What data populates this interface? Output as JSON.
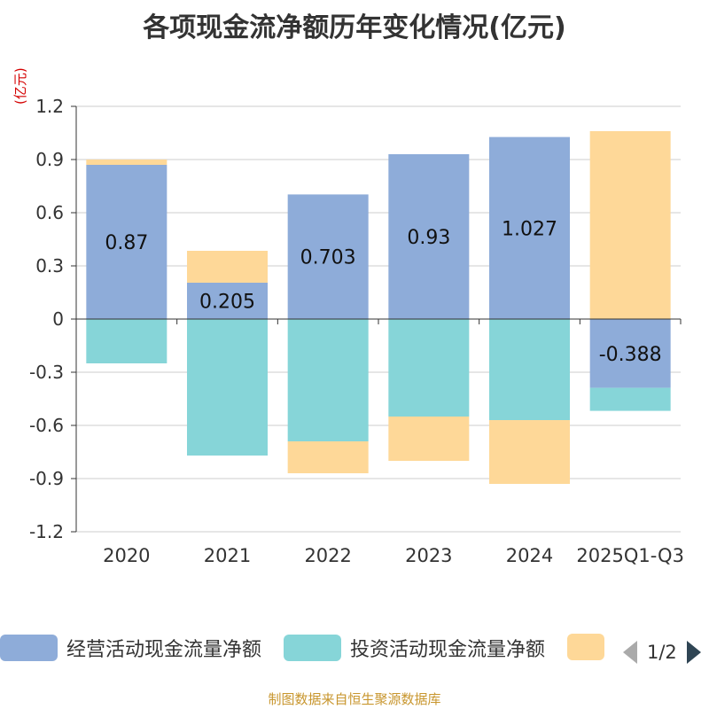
{
  "title": "各项现金流净额历年变化情况(亿元)",
  "unit_label": "(亿元)",
  "footer": "制图数据来自恒生聚源数据库",
  "colors": {
    "operating": "#8eacd9",
    "investing": "#86d5d8",
    "financing": "#fed898",
    "grid": "#cccccc",
    "axis": "#333333",
    "text": "#333333",
    "unit": "#d40000",
    "footer": "#c8962e"
  },
  "legend": {
    "items": [
      {
        "label": "经营活动现金流量净额",
        "color": "#8eacd9"
      },
      {
        "label": "投资活动现金流量净额",
        "color": "#86d5d8"
      },
      {
        "label": "",
        "color": "#fed898"
      }
    ],
    "page_indicator": "1/2",
    "prev_icon": "triangle-left-icon",
    "next_icon": "triangle-right-icon"
  },
  "chart_data": {
    "type": "bar",
    "stacked": true,
    "categories": [
      "2020",
      "2021",
      "2022",
      "2023",
      "2024",
      "2025Q1-Q3"
    ],
    "ylim": [
      -1.2,
      1.2
    ],
    "yticks": [
      1.2,
      0.9,
      0.6,
      0.3,
      0,
      -0.3,
      -0.6,
      -0.9,
      -1.2
    ],
    "ytick_labels": [
      "1.2",
      "0.9",
      "0.6",
      "0.3",
      "0",
      "-0.3",
      "-0.6",
      "-0.9",
      "-1.2"
    ],
    "grid": true,
    "legend_position": "bottom",
    "series": [
      {
        "name": "经营活动现金流量净额",
        "color": "#8eacd9",
        "values": [
          0.87,
          0.205,
          0.703,
          0.93,
          1.027,
          -0.388
        ],
        "labels": [
          "0.87",
          "0.205",
          "0.703",
          "0.93",
          "1.027",
          "-0.388"
        ]
      },
      {
        "name": "投资活动现金流量净额",
        "color": "#86d5d8",
        "values": [
          -0.25,
          -0.77,
          -0.69,
          -0.55,
          -0.57,
          -0.13
        ]
      },
      {
        "color": "#fed898",
        "values": [
          0.03,
          0.18,
          -0.18,
          -0.25,
          -0.36,
          1.06
        ]
      }
    ]
  }
}
